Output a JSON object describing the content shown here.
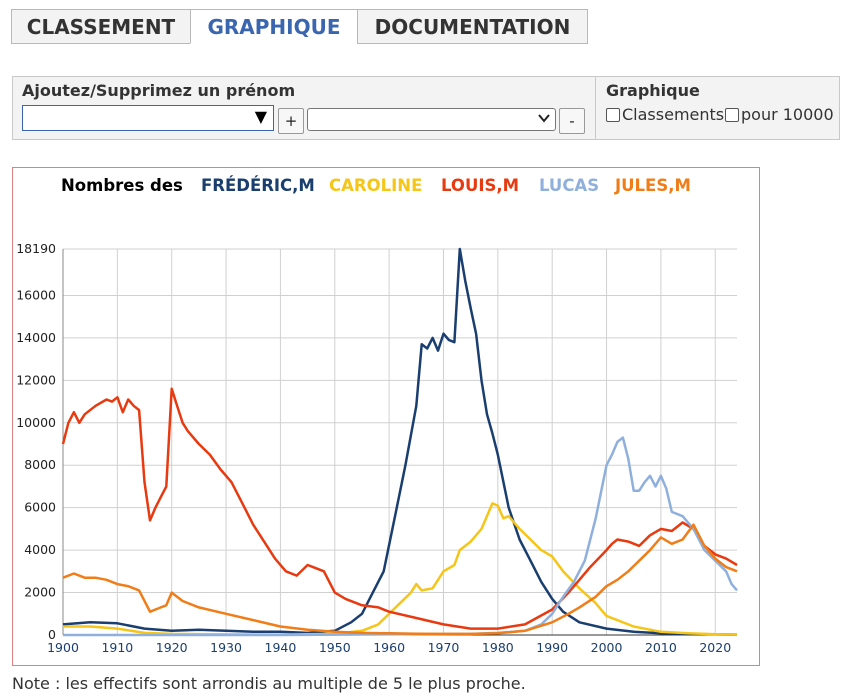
{
  "tabs": [
    {
      "label": "CLASSEMENT"
    },
    {
      "label": "GRAPHIQUE"
    },
    {
      "label": "DOCUMENTATION"
    }
  ],
  "controls": {
    "add_remove_label": "Ajoutez/Supprimez un prénom",
    "plus_label": "+",
    "minus_label": "-",
    "graph_label": "Graphique",
    "opt_rankings": "Classements",
    "opt_per10000": "pour 10000"
  },
  "note": "Note : les effectifs sont arrondis au multiple de 5 le plus proche.",
  "chart_data": {
    "type": "line",
    "title": "Nombres des",
    "xlim": [
      1900,
      2024
    ],
    "ylim": [
      0,
      18190
    ],
    "x_ticks": [
      1900,
      1910,
      1920,
      1930,
      1940,
      1950,
      1960,
      1970,
      1980,
      1990,
      2000,
      2010,
      2020
    ],
    "y_ticks": [
      0,
      2000,
      4000,
      6000,
      8000,
      10000,
      12000,
      14000,
      16000,
      18190
    ],
    "grid": true,
    "legend": "top",
    "series": [
      {
        "name": "FRÉDÉRIC,M",
        "color": "#1a3e6f",
        "x": [
          1900,
          1905,
          1910,
          1915,
          1920,
          1925,
          1930,
          1935,
          1940,
          1945,
          1950,
          1953,
          1955,
          1957,
          1959,
          1961,
          1963,
          1965,
          1966,
          1967,
          1968,
          1969,
          1970,
          1971,
          1972,
          1973,
          1974,
          1975,
          1976,
          1977,
          1978,
          1979,
          1980,
          1982,
          1984,
          1986,
          1988,
          1990,
          1992,
          1995,
          2000,
          2005,
          2010,
          2015,
          2020,
          2024
        ],
        "y": [
          500,
          600,
          550,
          300,
          200,
          250,
          200,
          150,
          150,
          100,
          200,
          600,
          1000,
          2000,
          3000,
          5500,
          8000,
          10800,
          13700,
          13500,
          14000,
          13400,
          14200,
          13900,
          13800,
          18190,
          16700,
          15400,
          14200,
          12000,
          10400,
          9500,
          8500,
          6000,
          4500,
          3500,
          2500,
          1700,
          1100,
          600,
          300,
          150,
          80,
          50,
          30,
          20
        ]
      },
      {
        "name": "CAROLINE",
        "color": "#f5c518",
        "x": [
          1900,
          1905,
          1910,
          1915,
          1920,
          1930,
          1940,
          1950,
          1955,
          1958,
          1960,
          1962,
          1964,
          1965,
          1966,
          1968,
          1970,
          1972,
          1973,
          1975,
          1977,
          1979,
          1980,
          1981,
          1982,
          1984,
          1986,
          1988,
          1990,
          1992,
          1995,
          1998,
          2000,
          2005,
          2010,
          2015,
          2020,
          2024
        ],
        "y": [
          400,
          400,
          300,
          100,
          50,
          30,
          20,
          50,
          200,
          500,
          1000,
          1500,
          2000,
          2400,
          2100,
          2200,
          3000,
          3300,
          4000,
          4400,
          5000,
          6200,
          6100,
          5500,
          5600,
          5000,
          4500,
          4000,
          3700,
          3000,
          2200,
          1500,
          900,
          400,
          150,
          80,
          40,
          20
        ]
      },
      {
        "name": "LOUIS,M",
        "color": "#e83a10",
        "x": [
          1900,
          1901,
          1902,
          1903,
          1904,
          1906,
          1908,
          1909,
          1910,
          1911,
          1912,
          1913,
          1914,
          1915,
          1916,
          1917,
          1918,
          1919,
          1920,
          1921,
          1922,
          1923,
          1925,
          1927,
          1929,
          1931,
          1933,
          1935,
          1937,
          1939,
          1941,
          1943,
          1945,
          1946,
          1948,
          1950,
          1952,
          1955,
          1958,
          1960,
          1965,
          1970,
          1975,
          1980,
          1985,
          1990,
          1993,
          1995,
          1997,
          2000,
          2001,
          2002,
          2004,
          2006,
          2008,
          2010,
          2012,
          2014,
          2016,
          2018,
          2020,
          2022,
          2024
        ],
        "y": [
          9000,
          10000,
          10500,
          10000,
          10400,
          10800,
          11100,
          11000,
          11200,
          10500,
          11100,
          10800,
          10600,
          7200,
          5400,
          6000,
          6500,
          7000,
          11600,
          10800,
          10000,
          9600,
          9000,
          8500,
          7800,
          7200,
          6200,
          5200,
          4400,
          3600,
          3000,
          2800,
          3300,
          3200,
          3000,
          2000,
          1700,
          1400,
          1300,
          1100,
          800,
          500,
          300,
          300,
          500,
          1200,
          2000,
          2600,
          3200,
          4000,
          4300,
          4500,
          4400,
          4200,
          4700,
          5000,
          4900,
          5300,
          5000,
          4200,
          3800,
          3600,
          3300
        ]
      },
      {
        "name": "LUCAS",
        "color": "#8fb0dc",
        "x": [
          1900,
          1940,
          1975,
          1980,
          1985,
          1988,
          1990,
          1992,
          1994,
          1996,
          1998,
          2000,
          2001,
          2002,
          2003,
          2004,
          2005,
          2006,
          2007,
          2008,
          2009,
          2010,
          2011,
          2012,
          2014,
          2016,
          2018,
          2020,
          2022,
          2023,
          2024
        ],
        "y": [
          0,
          0,
          50,
          100,
          200,
          500,
          1000,
          1800,
          2500,
          3500,
          5500,
          8000,
          8500,
          9100,
          9300,
          8300,
          6800,
          6800,
          7200,
          7500,
          7000,
          7500,
          6900,
          5800,
          5600,
          5000,
          4000,
          3500,
          3000,
          2400,
          2100
        ]
      },
      {
        "name": "JULES,M",
        "color": "#f07d18",
        "x": [
          1900,
          1902,
          1904,
          1906,
          1908,
          1910,
          1912,
          1914,
          1916,
          1918,
          1919,
          1920,
          1922,
          1925,
          1930,
          1935,
          1940,
          1945,
          1950,
          1955,
          1960,
          1965,
          1970,
          1975,
          1980,
          1985,
          1990,
          1993,
          1995,
          1998,
          2000,
          2002,
          2004,
          2006,
          2008,
          2010,
          2012,
          2014,
          2016,
          2018,
          2020,
          2022,
          2024
        ],
        "y": [
          2700,
          2900,
          2700,
          2700,
          2600,
          2400,
          2300,
          2100,
          1100,
          1300,
          1400,
          2000,
          1600,
          1300,
          1000,
          700,
          400,
          250,
          150,
          100,
          80,
          60,
          50,
          50,
          80,
          200,
          600,
          1000,
          1300,
          1800,
          2300,
          2600,
          3000,
          3500,
          4000,
          4600,
          4300,
          4500,
          5200,
          4200,
          3600,
          3200,
          3000
        ]
      }
    ]
  }
}
